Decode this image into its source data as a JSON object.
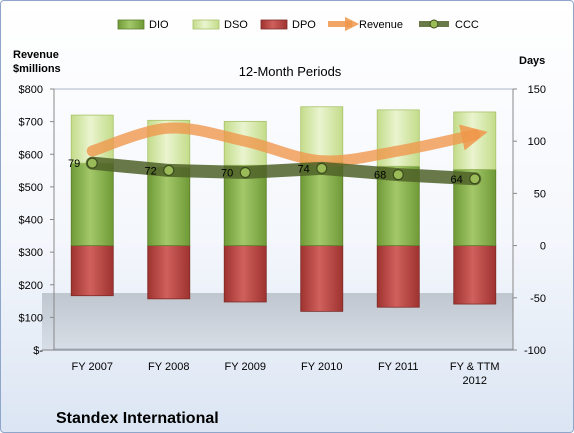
{
  "company": "Standex International",
  "chart_data": {
    "type": "bar",
    "title": "12-Month Periods",
    "categories": [
      [
        "FY 2007"
      ],
      [
        "FY 2008"
      ],
      [
        "FY 2009"
      ],
      [
        "FY 2010"
      ],
      [
        "FY 2011"
      ],
      [
        "FY & TTM",
        "2012"
      ]
    ],
    "left_axis": {
      "label": [
        "Revenue",
        "$millions"
      ],
      "range": [
        0,
        800
      ],
      "ticks": [
        0,
        100,
        200,
        300,
        400,
        500,
        600,
        700,
        800
      ],
      "tick_labels": [
        "$-",
        "$100",
        "$200",
        "$300",
        "$400",
        "$500",
        "$600",
        "$700",
        "$800"
      ]
    },
    "right_axis": {
      "label": "Days",
      "range": [
        -100,
        150
      ],
      "ticks": [
        -100,
        -50,
        0,
        50,
        100,
        150
      ],
      "tick_labels": [
        "-100",
        "-50",
        "0",
        "50",
        "100",
        "150"
      ]
    },
    "series": [
      {
        "name": "DIO",
        "type": "stacked-bar",
        "axis": "right",
        "values": [
          79,
          75,
          77,
          80,
          76,
          73
        ],
        "color": "#8db24f"
      },
      {
        "name": "DSO",
        "type": "stacked-bar",
        "axis": "right",
        "values": [
          46,
          45,
          42,
          53,
          54,
          55
        ],
        "color": "#d7e7ad"
      },
      {
        "name": "DPO",
        "type": "stacked-bar",
        "axis": "right",
        "values": [
          -48,
          -51,
          -54,
          -63,
          -59,
          -56
        ],
        "color": "#c0504d"
      },
      {
        "name": "Revenue",
        "type": "line",
        "axis": "left",
        "values": [
          610,
          680,
          640,
          580,
          610,
          660
        ],
        "color": "#f0964a"
      },
      {
        "name": "CCC",
        "type": "line",
        "axis": "right",
        "values": [
          79,
          72,
          70,
          74,
          68,
          64
        ],
        "labels": [
          "79",
          "72",
          "70",
          "74",
          "68",
          "64"
        ],
        "color": "#4f6228"
      }
    ],
    "legend": [
      "DIO",
      "DSO",
      "DPO",
      "Revenue",
      "CCC"
    ],
    "legend_position": "top",
    "grid": false
  }
}
